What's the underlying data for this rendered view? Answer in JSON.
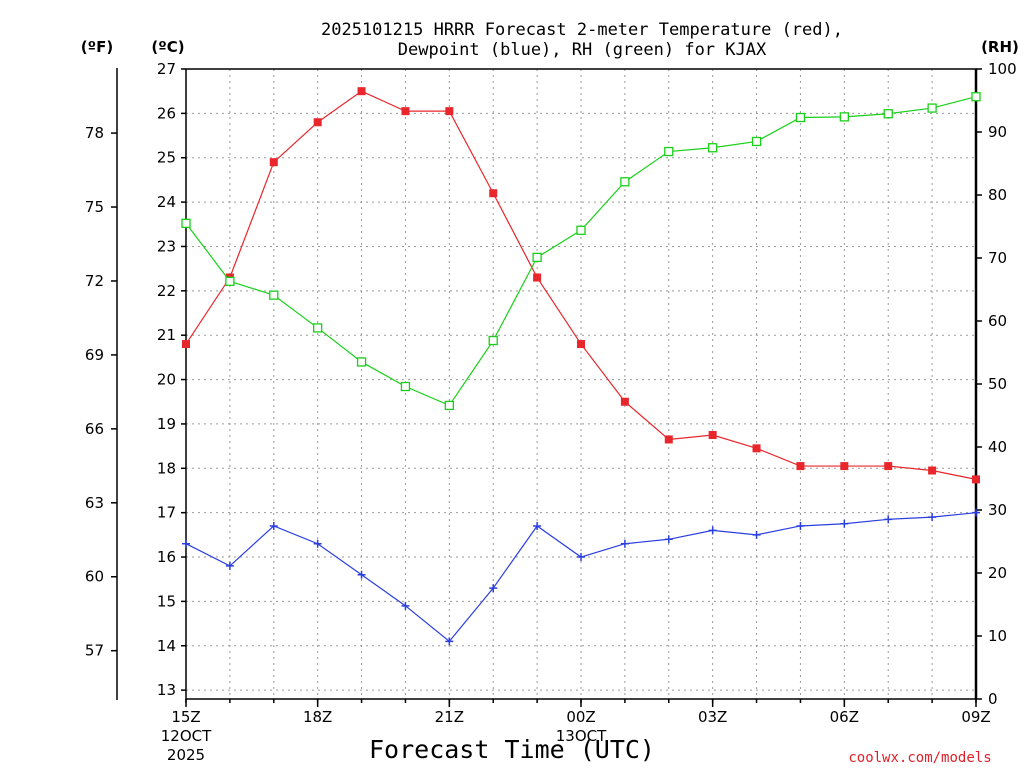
{
  "chart_data": {
    "type": "line",
    "title_line1": "2025101215 HRRR Forecast 2-meter Temperature (red),",
    "title_line2": "Dewpoint (blue), RH (green) for KJAX",
    "xlabel": "Forecast Time (UTC)",
    "unit_f": "(ºF)",
    "unit_c": "(ºC)",
    "unit_rh": "(RH)",
    "credit": "coolwx.com/models",
    "hours": [
      15,
      16,
      17,
      18,
      19,
      20,
      21,
      22,
      23,
      24,
      25,
      26,
      27,
      28,
      29,
      30,
      31,
      32,
      33
    ],
    "x_ticks": [
      {
        "hour": 15,
        "label": "15Z",
        "date1": "12OCT",
        "date2": "2025"
      },
      {
        "hour": 18,
        "label": "18Z",
        "date1": "",
        "date2": ""
      },
      {
        "hour": 21,
        "label": "21Z",
        "date1": "",
        "date2": ""
      },
      {
        "hour": 24,
        "label": "00Z",
        "date1": "13OCT",
        "date2": ""
      },
      {
        "hour": 27,
        "label": "03Z",
        "date1": "",
        "date2": ""
      },
      {
        "hour": 30,
        "label": "06Z",
        "date1": "",
        "date2": ""
      },
      {
        "hour": 33,
        "label": "09Z",
        "date1": "",
        "date2": ""
      }
    ],
    "xlim": [
      15,
      33
    ],
    "c_lim": [
      12.8,
      27
    ],
    "rh_lim": [
      0,
      100
    ],
    "c_ticks": [
      13,
      14,
      15,
      16,
      17,
      18,
      19,
      20,
      21,
      22,
      23,
      24,
      25,
      26,
      27
    ],
    "f_ticks": [
      57,
      60,
      63,
      66,
      69,
      72,
      75,
      78
    ],
    "rh_ticks": [
      0,
      10,
      20,
      30,
      40,
      50,
      60,
      70,
      80,
      90,
      100
    ],
    "series": [
      {
        "name": "Temperature",
        "axis": "c",
        "color": "#e8262b",
        "marker": "filled-square",
        "values": [
          20.8,
          22.3,
          24.9,
          25.8,
          26.5,
          26.05,
          26.05,
          24.2,
          22.3,
          20.8,
          19.5,
          18.65,
          18.75,
          18.45,
          18.05,
          18.05,
          18.05,
          17.95,
          17.75
        ]
      },
      {
        "name": "Dewpoint",
        "axis": "c",
        "color": "#2b3fe0",
        "marker": "plus",
        "values": [
          16.3,
          15.8,
          16.7,
          16.3,
          15.6,
          14.9,
          14.1,
          15.3,
          16.7,
          16.0,
          16.3,
          16.4,
          16.6,
          16.5,
          16.7,
          16.75,
          16.85,
          16.9,
          17.0
        ]
      },
      {
        "name": "RH",
        "axis": "rh",
        "color": "#18d018",
        "marker": "open-square",
        "values": [
          75.5,
          66.3,
          64.1,
          58.9,
          53.5,
          49.6,
          46.6,
          56.9,
          70.1,
          74.4,
          82.1,
          86.9,
          87.5,
          88.5,
          92.3,
          92.4,
          92.9,
          93.8,
          95.6
        ]
      }
    ]
  }
}
